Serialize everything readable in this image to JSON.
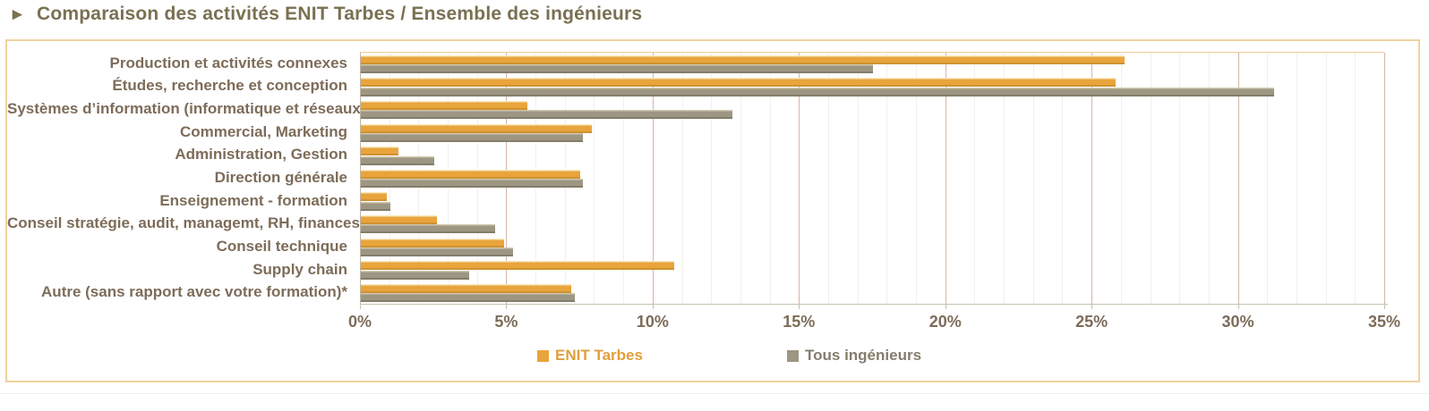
{
  "title": {
    "arrow": "►",
    "text": "Comparaison des activités ENIT Tarbes / Ensemble des ingénieurs"
  },
  "chart_data": {
    "type": "bar",
    "orientation": "horizontal",
    "title": "Comparaison des activités ENIT Tarbes / Ensemble des ingénieurs",
    "categories": [
      "Production et activités connexes",
      "Études, recherche et conception",
      "Systèmes d’information (informatique et réseaux)",
      "Commercial, Marketing",
      "Administration, Gestion",
      "Direction générale",
      "Enseignement - formation",
      "Conseil stratégie, audit, managemt, RH, finances",
      "Conseil technique",
      "Supply chain",
      "Autre (sans rapport avec votre formation)*"
    ],
    "series": [
      {
        "name": "ENIT Tarbes",
        "color": "#e9a43c",
        "label_color": "#df9f3c",
        "values": [
          26.1,
          25.8,
          5.7,
          7.9,
          1.3,
          7.5,
          0.9,
          2.6,
          4.9,
          10.7,
          7.2
        ]
      },
      {
        "name": "Tous ingénieurs",
        "color": "#9c9682",
        "label_color": "#847d6c",
        "values": [
          17.5,
          31.2,
          12.7,
          7.6,
          2.5,
          7.6,
          1.0,
          4.6,
          5.2,
          3.7,
          7.3
        ]
      }
    ],
    "x_axis": {
      "min": 0,
      "max": 35,
      "minor_step": 1,
      "major_step": 5,
      "tick_labels": [
        "0%",
        "5%",
        "10%",
        "15%",
        "20%",
        "25%",
        "30%",
        "35%"
      ]
    },
    "grid": true,
    "legend_position": "bottom",
    "legend": [
      {
        "label": "ENIT Tarbes",
        "color": "#e9a43c"
      },
      {
        "label": "Tous ingénieurs",
        "color": "#9c9682"
      }
    ]
  }
}
